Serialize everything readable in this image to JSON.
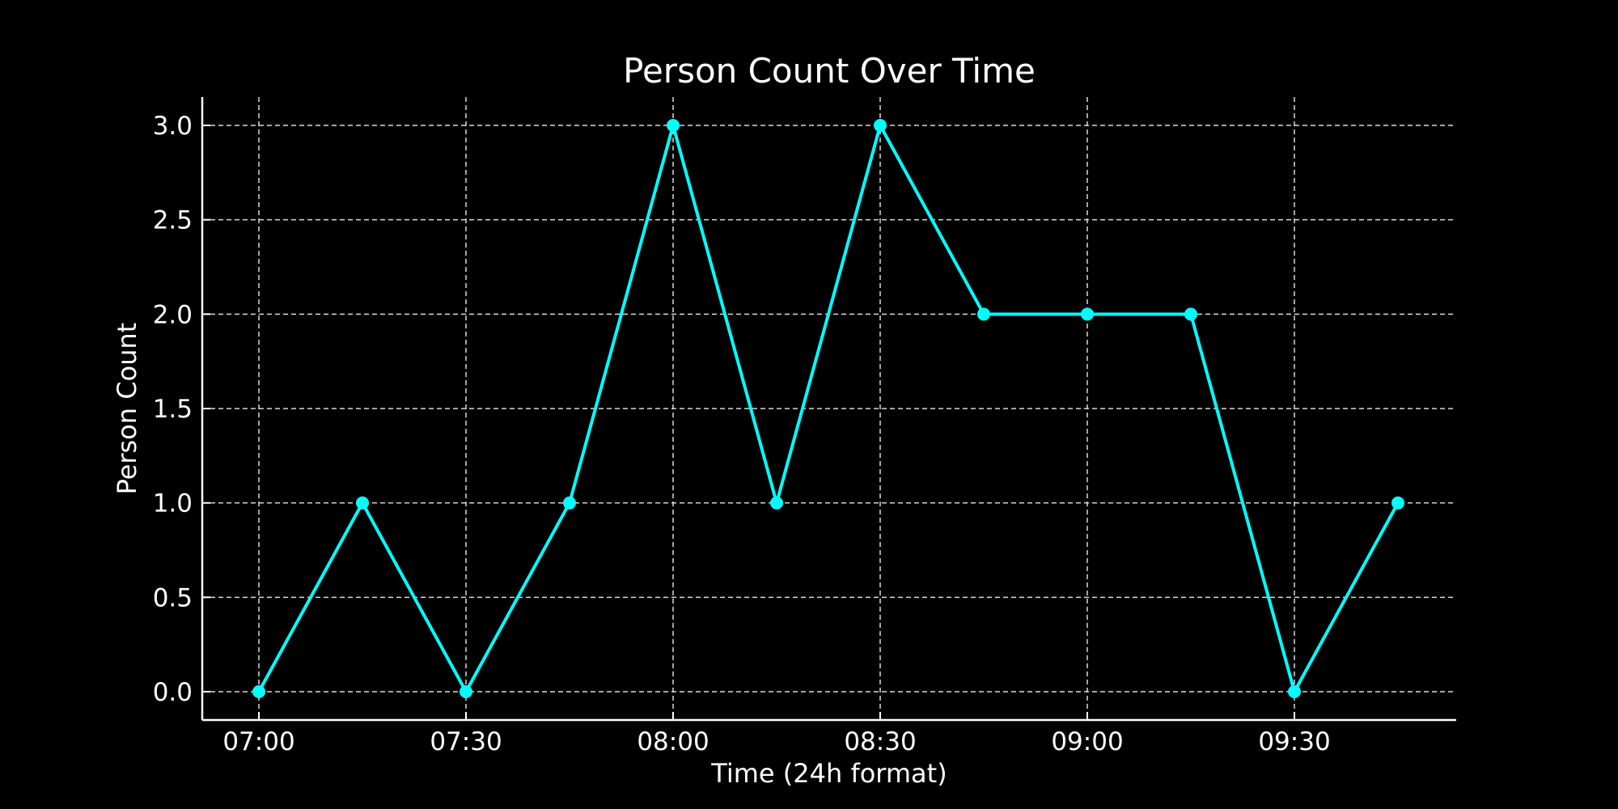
{
  "chart_data": {
    "type": "line",
    "title": "Person Count Over Time",
    "xlabel": "Time (24h format)",
    "ylabel": "Person Count",
    "x": [
      "07:00",
      "07:15",
      "07:30",
      "07:45",
      "08:00",
      "08:15",
      "08:30",
      "08:45",
      "09:00",
      "09:15",
      "09:30",
      "09:45"
    ],
    "series": [
      {
        "values": [
          0,
          1,
          0,
          1,
          3,
          1,
          3,
          2,
          2,
          2,
          0,
          1
        ]
      }
    ],
    "x_ticks": [
      "07:00",
      "07:30",
      "08:00",
      "08:30",
      "09:00",
      "09:30"
    ],
    "y_ticks": [
      "0.0",
      "0.5",
      "1.0",
      "1.5",
      "2.0",
      "2.5",
      "3.0"
    ],
    "ylim": [
      -0.15,
      3.15
    ],
    "grid": true,
    "grid_style": "dashed",
    "line_color": "#00ffff",
    "background_color": "#000000",
    "text_color": "#ffffff"
  }
}
